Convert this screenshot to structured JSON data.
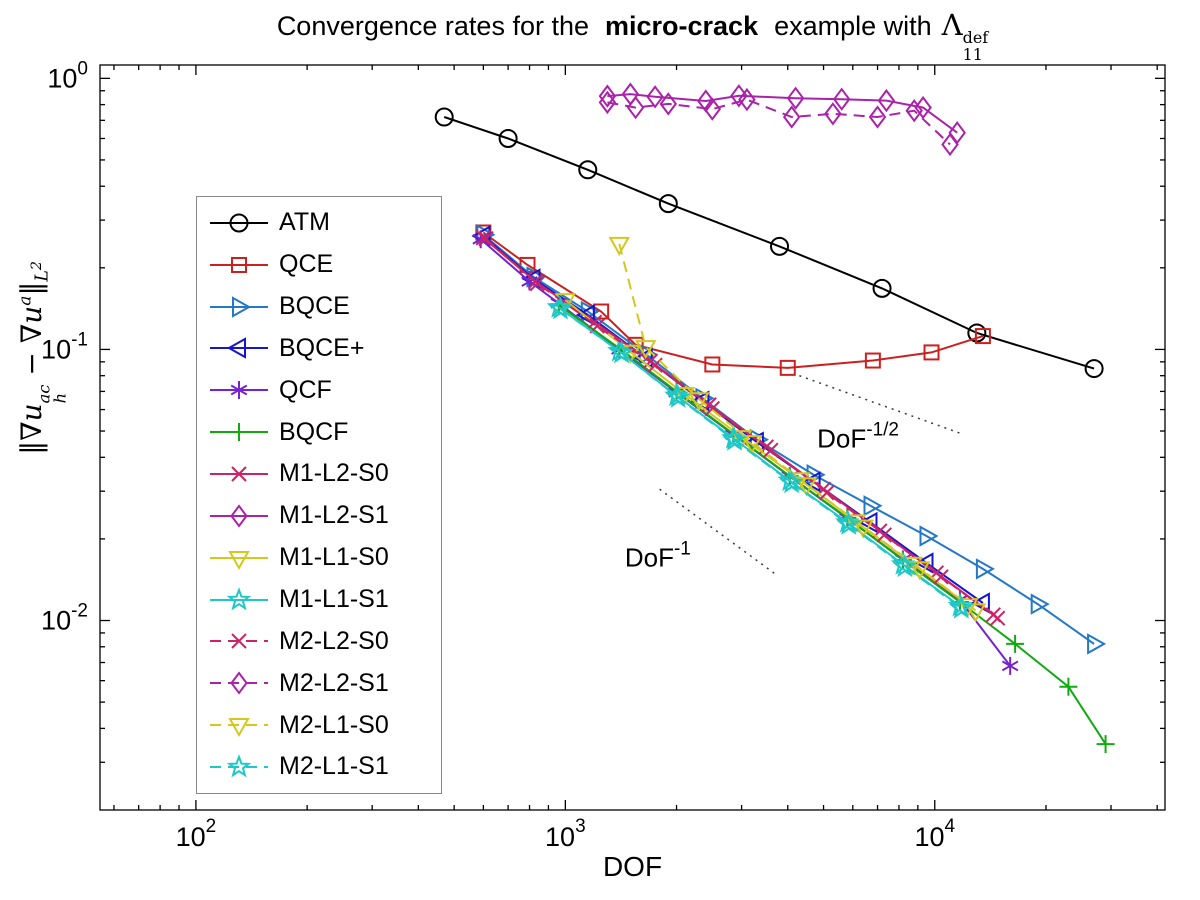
{
  "title": {
    "prefix": "Convergence rates for the",
    "emphasis": "micro-crack",
    "middle": "example with",
    "lambda": "Λ",
    "lambda_sup": "def",
    "lambda_sub": "11"
  },
  "ylabel": {
    "norm_open": "‖",
    "grad1": "∇",
    "u1": "u",
    "u1_sup": "ac",
    "u1_sub": "h",
    "minus": " − ",
    "grad2": "∇",
    "u2": "u",
    "u2_sup": "a",
    "norm_close": "‖",
    "l2_base": "L",
    "l2_exp": "2"
  },
  "chart_data": {
    "type": "line",
    "title": "Convergence rates for the micro-crack example with Λ_11^def",
    "xlabel": "DOF",
    "ylabel": "‖∇u_h^ac − ∇u^a‖_L2",
    "xscale": "log",
    "yscale": "log",
    "xlim": [
      55,
      42000
    ],
    "ylim": [
      0.002,
      1.12
    ],
    "xticks": [
      100,
      1000,
      10000
    ],
    "yticks": [
      1,
      0.1,
      0.01
    ],
    "grid": false,
    "legend_position": "top-left-inside",
    "series": [
      {
        "name": "ATM",
        "color": "#000000",
        "marker": "circle",
        "line": "solid",
        "points": [
          [
            470,
            0.72
          ],
          [
            700,
            0.6
          ],
          [
            1150,
            0.46
          ],
          [
            1900,
            0.345
          ],
          [
            3800,
            0.24
          ],
          [
            7200,
            0.168
          ],
          [
            13000,
            0.115
          ],
          [
            27000,
            0.085
          ]
        ]
      },
      {
        "name": "QCE",
        "color": "#cc2020",
        "marker": "square",
        "line": "solid",
        "points": [
          [
            600,
            0.27
          ],
          [
            790,
            0.205
          ],
          [
            1250,
            0.138
          ],
          [
            1550,
            0.104
          ],
          [
            2500,
            0.088
          ],
          [
            4000,
            0.0855
          ],
          [
            6800,
            0.091
          ],
          [
            9800,
            0.0975
          ],
          [
            13500,
            0.112
          ]
        ]
      },
      {
        "name": "BQCE",
        "color": "#2478c8",
        "marker": "triangle-right",
        "line": "solid",
        "points": [
          [
            600,
            0.265
          ],
          [
            820,
            0.185
          ],
          [
            1150,
            0.138
          ],
          [
            1650,
            0.096
          ],
          [
            2350,
            0.066
          ],
          [
            3300,
            0.0465
          ],
          [
            4700,
            0.0345
          ],
          [
            6700,
            0.0265
          ],
          [
            9500,
            0.0205
          ],
          [
            13500,
            0.0155
          ],
          [
            19000,
            0.0115
          ],
          [
            27000,
            0.0082
          ]
        ]
      },
      {
        "name": "BQCE+",
        "color": "#1515cf",
        "marker": "triangle-left",
        "line": "solid",
        "points": [
          [
            600,
            0.262
          ],
          [
            820,
            0.182
          ],
          [
            1150,
            0.134
          ],
          [
            1650,
            0.093
          ],
          [
            2350,
            0.0645
          ],
          [
            3300,
            0.0455
          ],
          [
            4700,
            0.0325
          ],
          [
            6700,
            0.023
          ],
          [
            9500,
            0.0163
          ],
          [
            13500,
            0.0116
          ]
        ]
      },
      {
        "name": "QCF",
        "color": "#7722cc",
        "marker": "asterisk",
        "line": "solid",
        "points": [
          [
            590,
            0.255
          ],
          [
            800,
            0.178
          ],
          [
            960,
            0.148
          ],
          [
            1400,
            0.1
          ],
          [
            2000,
            0.0695
          ],
          [
            2850,
            0.0485
          ],
          [
            4050,
            0.034
          ],
          [
            5800,
            0.0238
          ],
          [
            8200,
            0.0168
          ],
          [
            11700,
            0.0119
          ],
          [
            16000,
            0.0068
          ]
        ]
      },
      {
        "name": "BQCF",
        "color": "#11aa11",
        "marker": "plus",
        "line": "solid",
        "points": [
          [
            960,
            0.146
          ],
          [
            1400,
            0.101
          ],
          [
            2000,
            0.07
          ],
          [
            2850,
            0.0487
          ],
          [
            4050,
            0.0341
          ],
          [
            5800,
            0.0239
          ],
          [
            8200,
            0.0167
          ],
          [
            11700,
            0.0117
          ],
          [
            16500,
            0.0082
          ],
          [
            23000,
            0.0057
          ],
          [
            29000,
            0.0035
          ]
        ]
      },
      {
        "name": "M1-L2-S0",
        "color": "#cc2266",
        "marker": "x",
        "line": "solid",
        "points": [
          [
            600,
            0.258
          ],
          [
            830,
            0.178
          ],
          [
            1200,
            0.126
          ],
          [
            1700,
            0.0905
          ],
          [
            2450,
            0.0625
          ],
          [
            3500,
            0.0437
          ],
          [
            5000,
            0.0305
          ],
          [
            7100,
            0.0214
          ],
          [
            10100,
            0.015
          ],
          [
            14400,
            0.0105
          ]
        ]
      },
      {
        "name": "M1-L2-S1",
        "color": "#aa22aa",
        "marker": "diamond",
        "line": "solid",
        "points": [
          [
            1300,
            0.86
          ],
          [
            1500,
            0.875
          ],
          [
            1750,
            0.855
          ],
          [
            2400,
            0.825
          ],
          [
            2950,
            0.862
          ],
          [
            4200,
            0.845
          ],
          [
            5600,
            0.838
          ],
          [
            7400,
            0.828
          ],
          [
            9300,
            0.78
          ],
          [
            11500,
            0.63
          ]
        ]
      },
      {
        "name": "M1-L1-S0",
        "color": "#d2c81e",
        "marker": "triangle-down",
        "line": "solid",
        "points": [
          [
            1000,
            0.152
          ],
          [
            1500,
            0.098
          ],
          [
            2100,
            0.0685
          ],
          [
            3000,
            0.0475
          ],
          [
            4300,
            0.0332
          ],
          [
            6100,
            0.0232
          ],
          [
            8700,
            0.0162
          ],
          [
            12300,
            0.0114
          ]
        ]
      },
      {
        "name": "M1-L1-S1",
        "color": "#1fc8c8",
        "marker": "star",
        "line": "solid",
        "points": [
          [
            960,
            0.143
          ],
          [
            1400,
            0.0985
          ],
          [
            2000,
            0.0675
          ],
          [
            2850,
            0.047
          ],
          [
            4050,
            0.0328
          ],
          [
            5800,
            0.023
          ],
          [
            8200,
            0.0161
          ],
          [
            11700,
            0.0113
          ]
        ]
      },
      {
        "name": "M2-L2-S0",
        "color": "#cc2266",
        "marker": "x",
        "line": "dashed",
        "points": [
          [
            610,
            0.256
          ],
          [
            840,
            0.175
          ],
          [
            1220,
            0.122
          ],
          [
            1750,
            0.0875
          ],
          [
            2500,
            0.0605
          ],
          [
            3600,
            0.0425
          ],
          [
            5100,
            0.0296
          ],
          [
            7300,
            0.0207
          ],
          [
            10400,
            0.0145
          ],
          [
            14800,
            0.0102
          ]
        ]
      },
      {
        "name": "M2-L2-S1",
        "color": "#aa22aa",
        "marker": "diamond",
        "line": "dashed",
        "points": [
          [
            1300,
            0.815
          ],
          [
            1550,
            0.78
          ],
          [
            1900,
            0.805
          ],
          [
            2500,
            0.77
          ],
          [
            3100,
            0.835
          ],
          [
            4100,
            0.72
          ],
          [
            5300,
            0.74
          ],
          [
            7000,
            0.72
          ],
          [
            8800,
            0.76
          ],
          [
            11000,
            0.57
          ]
        ]
      },
      {
        "name": "M2-L1-S0",
        "color": "#d2c81e",
        "marker": "triangle-down",
        "line": "dashed",
        "points": [
          [
            1400,
            0.245
          ],
          [
            1650,
            0.102
          ],
          [
            2300,
            0.0655
          ],
          [
            3200,
            0.0455
          ],
          [
            4500,
            0.0318
          ],
          [
            6400,
            0.0222
          ],
          [
            9100,
            0.0156
          ],
          [
            12900,
            0.0109
          ]
        ]
      },
      {
        "name": "M2-L1-S1",
        "color": "#1fc8c8",
        "marker": "star",
        "line": "dashed",
        "points": [
          [
            970,
            0.141
          ],
          [
            1420,
            0.097
          ],
          [
            2020,
            0.0665
          ],
          [
            2870,
            0.0462
          ],
          [
            4100,
            0.0322
          ],
          [
            5850,
            0.0226
          ],
          [
            8300,
            0.0158
          ],
          [
            11800,
            0.0111
          ]
        ]
      }
    ],
    "annotations": [
      {
        "base": "DoF",
        "exponent": "-1/2",
        "x": 6200,
        "y": 0.0435
      },
      {
        "base": "DoF",
        "exponent": "-1",
        "x": 1780,
        "y": 0.0158
      }
    ],
    "guides": [
      {
        "x1": 4300,
        "y1": 0.08,
        "x2": 12000,
        "y2": 0.0485,
        "style": "dotted"
      },
      {
        "x1": 1800,
        "y1": 0.0305,
        "x2": 3700,
        "y2": 0.01485,
        "style": "dotted"
      }
    ]
  }
}
